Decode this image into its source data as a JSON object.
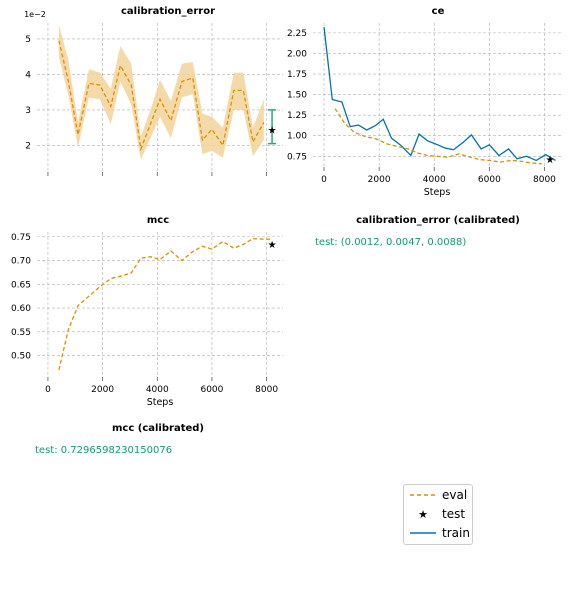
{
  "colors": {
    "eval": "#de8f05",
    "train": "#0173b2",
    "test": "#000000",
    "test_text": "#109a74",
    "band": "#f3d39a",
    "errorbar": "#29a97a",
    "grid": "#b0b0b0"
  },
  "titles": {
    "calibration_error": "calibration_error",
    "ce": "ce",
    "mcc": "mcc",
    "calibration_error_calibrated": "calibration_error (calibrated)",
    "mcc_calibrated": "mcc (calibrated)"
  },
  "texts": {
    "calibration_error_calibrated_test": "test: (0.0012, 0.0047, 0.0088)",
    "mcc_calibrated_test": "test: 0.7296598230150076"
  },
  "legend": {
    "eval": "eval",
    "test": "test",
    "train": "train"
  },
  "chart_data": [
    {
      "id": "calibration_error",
      "type": "line",
      "title": "calibration_error",
      "xlabel": "",
      "ylabel": "",
      "y_multiplier_label": "1e−2",
      "xlim": [
        -400,
        8600
      ],
      "ylim": [
        1.25,
        5.45
      ],
      "yticks": [
        2,
        3,
        4,
        5
      ],
      "ytick_labels": [
        "2",
        "3",
        "4",
        "5"
      ],
      "xticks": [
        0,
        2000,
        4000,
        6000,
        8000
      ],
      "xtick_labels": [
        "",
        "",
        "",
        "",
        ""
      ],
      "grid": true,
      "series": [
        {
          "name": "eval",
          "style": "dashed",
          "x": [
            400,
            750,
            1100,
            1500,
            1900,
            2300,
            2650,
            3050,
            3400,
            3750,
            4100,
            4500,
            4900,
            5300,
            5650,
            6000,
            6400,
            6800,
            7150,
            7500,
            7900
          ],
          "y": [
            4.95,
            3.8,
            2.3,
            3.75,
            3.7,
            3.1,
            4.25,
            3.7,
            1.9,
            2.6,
            3.3,
            2.7,
            3.8,
            3.9,
            2.15,
            2.45,
            2.0,
            3.55,
            3.55,
            2.1,
            2.65
          ],
          "band_low": [
            4.5,
            3.4,
            1.95,
            3.35,
            3.3,
            2.6,
            3.8,
            3.15,
            1.6,
            2.2,
            2.8,
            2.2,
            3.35,
            3.45,
            1.75,
            1.85,
            1.65,
            3.0,
            3.0,
            1.7,
            2.15
          ],
          "band_high": [
            5.4,
            4.4,
            2.65,
            4.15,
            4.05,
            3.6,
            4.8,
            4.3,
            2.25,
            3.0,
            3.85,
            3.25,
            4.3,
            4.35,
            2.9,
            2.8,
            2.5,
            4.05,
            4.05,
            2.5,
            3.3
          ]
        },
        {
          "name": "test",
          "type": "scatter",
          "marker": "star",
          "x": [
            8200
          ],
          "y": [
            2.45
          ],
          "err_low": [
            2.05
          ],
          "err_high": [
            3.0
          ]
        }
      ]
    },
    {
      "id": "ce",
      "type": "line",
      "title": "ce",
      "xlabel": "Steps",
      "ylabel": "",
      "xlim": [
        -400,
        8600
      ],
      "ylim": [
        0.62,
        2.37
      ],
      "xticks": [
        0,
        2000,
        4000,
        6000,
        8000
      ],
      "xtick_labels": [
        "0",
        "2000",
        "4000",
        "6000",
        "8000"
      ],
      "yticks": [
        0.75,
        1.0,
        1.25,
        1.5,
        1.75,
        2.0,
        2.25
      ],
      "ytick_labels": [
        "0.75",
        "1.00",
        "1.25",
        "1.50",
        "1.75",
        "2.00",
        "2.25"
      ],
      "grid": true,
      "series": [
        {
          "name": "train",
          "style": "solid",
          "x": [
            0,
            300,
            650,
            950,
            1250,
            1550,
            1850,
            2150,
            2450,
            2800,
            3150,
            3450,
            3750,
            4050,
            4400,
            4700,
            5050,
            5350,
            5700,
            6000,
            6350,
            6700,
            7000,
            7350,
            7700,
            8050,
            8400
          ],
          "y": [
            2.32,
            1.44,
            1.41,
            1.11,
            1.13,
            1.07,
            1.12,
            1.2,
            0.97,
            0.88,
            0.76,
            1.02,
            0.94,
            0.9,
            0.85,
            0.83,
            0.92,
            1.01,
            0.84,
            0.89,
            0.76,
            0.84,
            0.72,
            0.75,
            0.7,
            0.77,
            0.7
          ]
        },
        {
          "name": "eval",
          "style": "dashed",
          "x": [
            400,
            750,
            1100,
            1500,
            1900,
            2300,
            2650,
            3050,
            3400,
            3750,
            4100,
            4500,
            4900,
            5300,
            5650,
            6000,
            6400,
            6800,
            7150,
            7500,
            7900
          ],
          "y": [
            1.33,
            1.15,
            1.04,
            0.99,
            0.96,
            0.9,
            0.87,
            0.84,
            0.79,
            0.76,
            0.75,
            0.74,
            0.78,
            0.74,
            0.71,
            0.7,
            0.68,
            0.7,
            0.69,
            0.67,
            0.66
          ]
        },
        {
          "name": "test",
          "type": "scatter",
          "marker": "star",
          "x": [
            8200
          ],
          "y": [
            0.72
          ]
        }
      ]
    },
    {
      "id": "mcc",
      "type": "line",
      "title": "mcc",
      "xlabel": "Steps",
      "ylabel": "",
      "xlim": [
        -400,
        8600
      ],
      "ylim": [
        0.455,
        0.76
      ],
      "xticks": [
        0,
        2000,
        4000,
        6000,
        8000
      ],
      "xtick_labels": [
        "0",
        "2000",
        "4000",
        "6000",
        "8000"
      ],
      "yticks": [
        0.5,
        0.55,
        0.6,
        0.65,
        0.7,
        0.75
      ],
      "ytick_labels": [
        "0.50",
        "0.55",
        "0.60",
        "0.65",
        "0.70",
        "0.75"
      ],
      "grid": true,
      "series": [
        {
          "name": "eval",
          "style": "dashed",
          "x": [
            400,
            750,
            1100,
            1500,
            1900,
            2300,
            2650,
            3050,
            3400,
            3750,
            4100,
            4500,
            4900,
            5300,
            5650,
            6000,
            6400,
            6800,
            7150,
            7500,
            7900,
            8200
          ],
          "y": [
            0.47,
            0.555,
            0.605,
            0.625,
            0.645,
            0.662,
            0.667,
            0.674,
            0.705,
            0.708,
            0.702,
            0.72,
            0.7,
            0.719,
            0.73,
            0.724,
            0.74,
            0.726,
            0.734,
            0.746,
            0.745,
            0.745
          ]
        },
        {
          "name": "test",
          "type": "scatter",
          "marker": "star",
          "x": [
            8200
          ],
          "y": [
            0.735
          ]
        }
      ]
    }
  ]
}
